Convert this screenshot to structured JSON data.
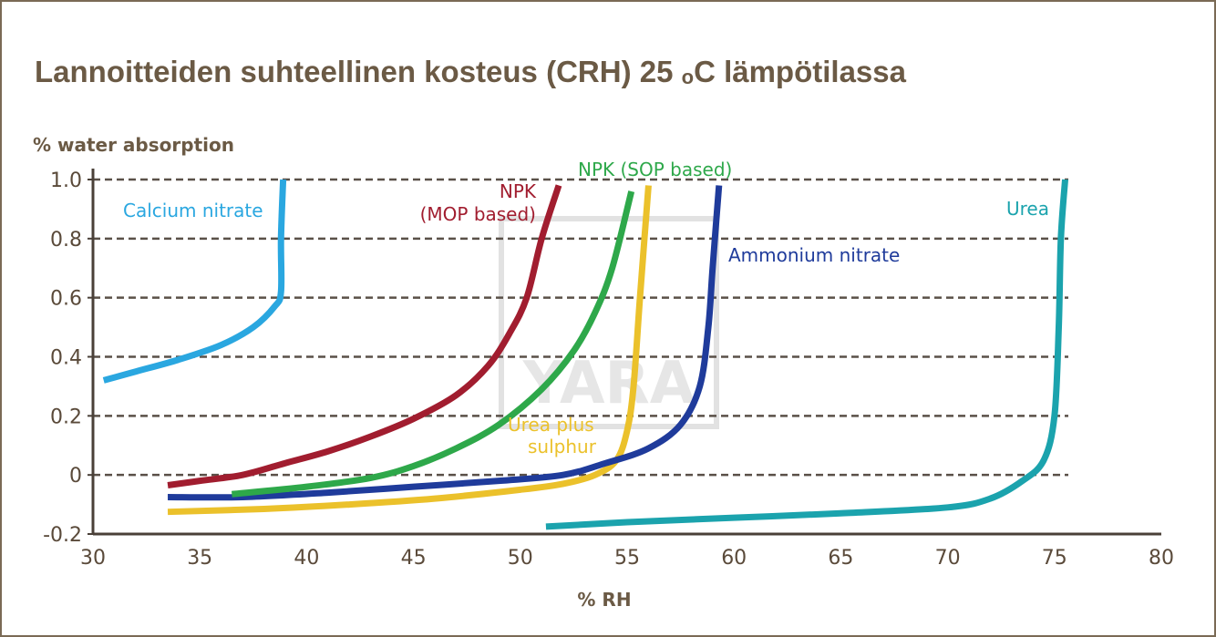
{
  "chart_data": {
    "type": "line",
    "title": "Lannoitteiden suhteellinen kosteus (CRH) 25 oC lämpötilassa",
    "title_parts": {
      "pre": "Lannoitteiden suhteellinen kosteus (CRH) 25 ",
      "sup": "o",
      "post": "C lämpötilassa"
    },
    "xlabel": "% RH",
    "ylabel": "% water absorption",
    "xlim": [
      30,
      80
    ],
    "ylim": [
      -0.2,
      1.0
    ],
    "xticks": [
      "30",
      "35",
      "40",
      "45",
      "50",
      "55",
      "60",
      "65",
      "70",
      "75",
      "80"
    ],
    "yticks": [
      "-0.2",
      "0",
      "0.2",
      "0.4",
      "0.6",
      "0.8",
      "1.0"
    ],
    "grid": "horizontal dashed",
    "watermark": "YARA",
    "series": [
      {
        "name": "Calcium nitrate",
        "color": "#2aa7e0",
        "points": [
          [
            30.5,
            0.32
          ],
          [
            32,
            0.35
          ],
          [
            34,
            0.39
          ],
          [
            36,
            0.44
          ],
          [
            37.5,
            0.5
          ],
          [
            38.5,
            0.57
          ],
          [
            38.8,
            0.62
          ],
          [
            38.8,
            0.8
          ],
          [
            38.9,
            1.0
          ]
        ]
      },
      {
        "name": "NPK (MOP based)",
        "label_lines": [
          "NPK",
          "(MOP based)"
        ],
        "color": "#a11d2f",
        "points": [
          [
            33.5,
            -0.035
          ],
          [
            35,
            -0.02
          ],
          [
            37,
            0.0
          ],
          [
            39,
            0.04
          ],
          [
            41,
            0.08
          ],
          [
            43,
            0.13
          ],
          [
            45,
            0.19
          ],
          [
            47,
            0.27
          ],
          [
            48.5,
            0.37
          ],
          [
            49.5,
            0.48
          ],
          [
            50.3,
            0.6
          ],
          [
            51,
            0.8
          ],
          [
            51.8,
            0.98
          ]
        ]
      },
      {
        "name": "NPK (SOP based)",
        "color": "#2ea84a",
        "points": [
          [
            36.5,
            -0.065
          ],
          [
            40,
            -0.04
          ],
          [
            43,
            -0.01
          ],
          [
            45,
            0.03
          ],
          [
            47,
            0.09
          ],
          [
            49,
            0.17
          ],
          [
            51,
            0.29
          ],
          [
            52.5,
            0.42
          ],
          [
            53.5,
            0.55
          ],
          [
            54.3,
            0.7
          ],
          [
            55.2,
            0.96
          ]
        ]
      },
      {
        "name": "Urea plus sulphur",
        "label_lines": [
          "Urea plus",
          "sulphur"
        ],
        "color": "#ebc12b",
        "points": [
          [
            33.5,
            -0.125
          ],
          [
            38,
            -0.115
          ],
          [
            42,
            -0.1
          ],
          [
            46,
            -0.08
          ],
          [
            50,
            -0.05
          ],
          [
            52,
            -0.03
          ],
          [
            53.5,
            0.0
          ],
          [
            54.5,
            0.05
          ],
          [
            55,
            0.15
          ],
          [
            55.3,
            0.3
          ],
          [
            55.6,
            0.6
          ],
          [
            56,
            0.98
          ]
        ]
      },
      {
        "name": "Ammonium nitrate",
        "color": "#1f3b9b",
        "points": [
          [
            33.5,
            -0.075
          ],
          [
            37,
            -0.075
          ],
          [
            41,
            -0.06
          ],
          [
            45,
            -0.04
          ],
          [
            49,
            -0.02
          ],
          [
            52,
            0.0
          ],
          [
            54,
            0.04
          ],
          [
            56,
            0.09
          ],
          [
            57.5,
            0.17
          ],
          [
            58.4,
            0.3
          ],
          [
            58.8,
            0.5
          ],
          [
            59,
            0.7
          ],
          [
            59.3,
            0.98
          ]
        ]
      },
      {
        "name": "Urea",
        "color": "#1ba3ad",
        "points": [
          [
            51.2,
            -0.175
          ],
          [
            55,
            -0.16
          ],
          [
            60,
            -0.145
          ],
          [
            65,
            -0.13
          ],
          [
            70,
            -0.11
          ],
          [
            72,
            -0.08
          ],
          [
            73.5,
            -0.02
          ],
          [
            74.5,
            0.05
          ],
          [
            75,
            0.2
          ],
          [
            75.2,
            0.5
          ],
          [
            75.3,
            0.8
          ],
          [
            75.5,
            1.0
          ]
        ]
      }
    ]
  }
}
